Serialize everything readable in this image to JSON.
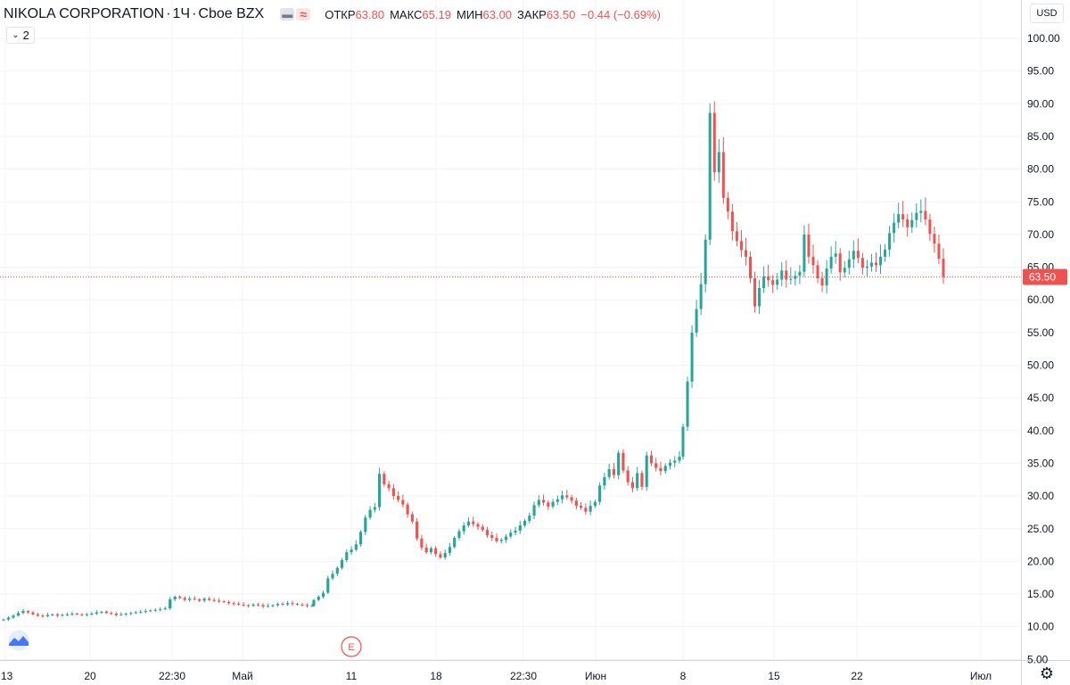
{
  "header": {
    "symbol": "NIKOLA CORPORATION",
    "sep1": "·",
    "interval": "1Ч",
    "sep2": "·",
    "exchange": "Cboe BZX",
    "icons": [
      "minus-chip-icon",
      "wave-chip-icon"
    ],
    "ohlc": {
      "open_label": "ОТКР",
      "open": "63.80",
      "high_label": "МАКС",
      "high": "65.19",
      "low_label": "МИН",
      "low": "63.00",
      "close_label": "ЗАКР",
      "close": "63.50",
      "change": "−0.44 (−0.69%)"
    }
  },
  "indicators_badge": "2",
  "currency_button": "USD",
  "last_price_label": "63.50",
  "earnings_marker": "E",
  "colors": {
    "up": "#26a69a",
    "down": "#ef5350",
    "grid": "#f0f3fa",
    "axis_text": "#131722"
  },
  "chart_data": {
    "type": "candlestick",
    "title": "NIKOLA CORPORATION",
    "xlabel": "",
    "ylabel": "",
    "ylim": [
      2.5,
      101
    ],
    "y_ticks": [
      5,
      10,
      15,
      20,
      25,
      30,
      35,
      40,
      45,
      50,
      55,
      60,
      65,
      70,
      75,
      80,
      85,
      90,
      95,
      100
    ],
    "y_tick_labels": [
      "5.00",
      "10.00",
      "15.00",
      "20.00",
      "25.00",
      "30.00",
      "35.00",
      "40.00",
      "45.00",
      "50.00",
      "55.00",
      "60.00",
      "65.00",
      "70.00",
      "75.00",
      "80.00",
      "85.00",
      "90.00",
      "95.00",
      "100.00"
    ],
    "x_tick_labels": [
      "13",
      "20",
      "22:30",
      "Май",
      "11",
      "18",
      "22:30",
      "Июн",
      "8",
      "15",
      "22",
      "Июл"
    ],
    "last_price": 63.5,
    "grid": true,
    "series": [
      {
        "segment": "Apr 13 – May 8",
        "closes": [
          11.1,
          11.4,
          11.7,
          12.1,
          12.4,
          12.2,
          11.9,
          11.7,
          11.6,
          11.8,
          11.9,
          11.7,
          11.8,
          11.9,
          12.0,
          11.9,
          11.8,
          11.9,
          12.0,
          12.2,
          12.3,
          12.1,
          12.0,
          11.8,
          11.9,
          12.0,
          12.1,
          12.2,
          12.3,
          12.4,
          12.5,
          12.6,
          12.7,
          12.8,
          14.2,
          14.6,
          14.4,
          14.1,
          14.3,
          14.2,
          14.0,
          14.3,
          14.1,
          14.0,
          13.9,
          13.8,
          13.6,
          13.5,
          13.4,
          13.3,
          13.2,
          13.4,
          13.3,
          13.1,
          13.2,
          13.3,
          13.5,
          13.4,
          13.6,
          13.5,
          13.4,
          13.3,
          13.2,
          13.2
        ]
      },
      {
        "segment": "May 8 – Jun 5",
        "closes": [
          14.1,
          14.6,
          15.2,
          17.4,
          18.1,
          19.0,
          20.2,
          21.4,
          21.8,
          22.6,
          24.5,
          26.7,
          27.9,
          28.3,
          33.4,
          31.8,
          31.2,
          30.0,
          29.4,
          28.7,
          27.2,
          26.1,
          23.5,
          22.1,
          21.4,
          22.0,
          21.1,
          20.6,
          21.3,
          22.2,
          23.6,
          24.6,
          25.5,
          26.1,
          25.7,
          25.3,
          24.8,
          24.0,
          23.6,
          23.1,
          23.3,
          23.8,
          24.4,
          24.7,
          25.5,
          26.2,
          27.0,
          28.6,
          29.4,
          29.0,
          28.4,
          29.1,
          29.5,
          30.1,
          29.8,
          29.3,
          28.5,
          28.2,
          27.6,
          28.5,
          29.1,
          31.6,
          32.9,
          34.1,
          33.2,
          36.6,
          33.9,
          32.1,
          31.2,
          33.5,
          31.4,
          36.2,
          35.0,
          34.3,
          33.8,
          34.6,
          35.1,
          35.4,
          36.0
        ]
      },
      {
        "segment": "Jun 8 – Jun 26",
        "closes": [
          40.6,
          47.5,
          55.0,
          58.6,
          62.4,
          69.2,
          88.6,
          79.5,
          82.6,
          75.6,
          73.5,
          70.5,
          69.0,
          67.6,
          66.6,
          63.3,
          59.0,
          61.8,
          63.6,
          63.0,
          62.3,
          63.1,
          64.5,
          63.1,
          63.2,
          63.7,
          64.3,
          70.0,
          66.6,
          65.3,
          63.3,
          62.2,
          64.8,
          66.6,
          67.1,
          64.2,
          64.9,
          66.2,
          67.5,
          66.4,
          64.9,
          65.1,
          65.7,
          65.3,
          66.6,
          67.7,
          70.2,
          71.8,
          73.1,
          72.3,
          71.1,
          72.2,
          73.3,
          73.6,
          72.3,
          70.1,
          68.6,
          66.3,
          63.5
        ]
      }
    ]
  }
}
